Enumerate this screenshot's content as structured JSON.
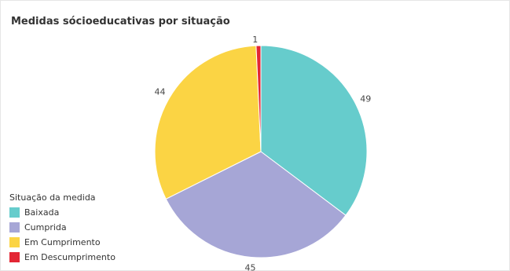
{
  "chart_data": {
    "type": "pie",
    "title": "Medidas sócioeducativas por situação",
    "legend_title": "Situação da medida",
    "legend_position": "bottom-left",
    "categories": [
      "Baixada",
      "Cumprida",
      "Em Cumprimento",
      "Em Descumprimento"
    ],
    "values": [
      49,
      45,
      44,
      1
    ],
    "colors": [
      "#66cccc",
      "#a6a6d6",
      "#fbd444",
      "#e32634"
    ],
    "data_labels": [
      "49",
      "45",
      "44",
      "1"
    ]
  }
}
